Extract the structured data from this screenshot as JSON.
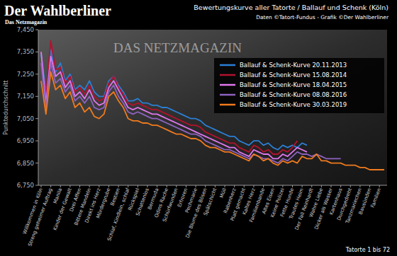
{
  "chart_data": {
    "type": "line",
    "title": "Der Wahlberliner",
    "subtitle": "Das Netzmagazin",
    "annotations": [
      "Bewertungskurve aller Tatorte / Ballauf und Schenk (Köln)",
      "Daten ©Tatort-Fundus - Grafik ©Der Wahlberliner",
      "DAS NETZMAGAZIN"
    ],
    "x_label": "Tatorte 1 bis 72",
    "y_label": "Punktedurchschnitt",
    "categories": [
      "Willkommen in Köln",
      null,
      "Streng geheimer Auftrag",
      null,
      "Manila",
      null,
      "Kinder der Gewalt",
      null,
      "Drei Affen",
      null,
      "Bittere Mandeln",
      null,
      "Direkt ins Herz",
      null,
      "Mördergrube",
      null,
      "Bestien",
      null,
      "Schlaf, Kindlein, schlaf",
      null,
      "Rückspiel",
      null,
      "Schattenlos",
      null,
      "Bermuda",
      null,
      "Odins Rache",
      null,
      "Schürfwunden",
      null,
      "Erfroren",
      null,
      "Pechmarie",
      null,
      "Die Blume des Bösen",
      null,
      "Spätschicht",
      null,
      "Müll",
      null,
      "Rabenherz",
      null,
      "Platt gemacht",
      null,
      "Kaltes Herz",
      null,
      "Familienbande",
      null,
      "Altes Eisen",
      null,
      "Keine Polizei",
      null,
      "Fette Hunde",
      null,
      "Trautes Heim",
      null,
      "Der Fall Reinhardt",
      null,
      "Wahre Liebe",
      null,
      "Dicker als Wasser",
      null,
      "Kartenhaus",
      null,
      "Durchgedreht",
      null,
      "Tanzmariechen",
      null,
      "Bausünden",
      null,
      "Familien",
      null
    ],
    "series": [
      {
        "name": "Ballauf & Schenk-Kurve 20.11.2013",
        "color": "#2b7fd4",
        "values": [
          7.34,
          7.17,
          7.36,
          7.26,
          7.3,
          7.22,
          7.25,
          7.18,
          7.2,
          7.18,
          7.22,
          7.17,
          7.15,
          7.15,
          7.22,
          7.24,
          7.2,
          7.17,
          7.13,
          7.13,
          7.14,
          7.12,
          7.12,
          7.11,
          7.11,
          7.1,
          7.1,
          7.09,
          7.08,
          7.07,
          7.06,
          7.05,
          7.05,
          7.04,
          7.02,
          7.01,
          7.0,
          6.99,
          6.98,
          6.97,
          6.97,
          6.95,
          6.94,
          6.93,
          6.95,
          6.95,
          6.93,
          6.94,
          6.92,
          6.91,
          6.93,
          6.92,
          6.93,
          6.92,
          6.94,
          6.93,
          null,
          null,
          null,
          null,
          null,
          null,
          null,
          null,
          null,
          null,
          null,
          null,
          null,
          null,
          null,
          null
        ]
      },
      {
        "name": "Ballauf & Schenk-Kurve 15.08.2014",
        "color": "#b3122e",
        "values": [
          7.3,
          7.16,
          7.4,
          7.27,
          7.28,
          7.21,
          7.24,
          7.17,
          7.19,
          7.16,
          7.2,
          7.15,
          7.13,
          7.14,
          7.21,
          7.24,
          7.19,
          7.16,
          7.12,
          7.11,
          7.12,
          7.11,
          7.1,
          7.09,
          7.09,
          7.08,
          7.07,
          7.06,
          7.05,
          7.04,
          7.03,
          7.02,
          7.02,
          7.01,
          6.99,
          6.98,
          6.97,
          6.96,
          6.95,
          6.94,
          6.94,
          6.92,
          6.91,
          6.9,
          6.93,
          6.92,
          6.9,
          6.91,
          6.89,
          6.89,
          6.91,
          6.9,
          6.92,
          6.95,
          null,
          null,
          null,
          null,
          null,
          null,
          null,
          null,
          null,
          null,
          null,
          null,
          null,
          null,
          null,
          null,
          null,
          null
        ]
      },
      {
        "name": "Ballauf & Schenk-Kurve 18.04.2015",
        "color": "#e277ee",
        "values": [
          7.35,
          7.12,
          7.33,
          7.24,
          7.26,
          7.19,
          7.22,
          7.15,
          7.17,
          7.14,
          7.18,
          7.13,
          7.11,
          7.12,
          7.19,
          7.22,
          7.18,
          7.14,
          7.1,
          7.09,
          7.1,
          7.09,
          7.08,
          7.07,
          7.07,
          7.06,
          7.05,
          7.04,
          7.03,
          7.02,
          7.01,
          7.0,
          6.99,
          6.98,
          6.97,
          6.96,
          6.95,
          6.94,
          6.93,
          6.92,
          6.92,
          6.9,
          6.89,
          6.88,
          6.91,
          6.9,
          6.89,
          6.89,
          6.87,
          6.87,
          6.89,
          6.88,
          6.9,
          6.92,
          6.91,
          6.9,
          null,
          null,
          null,
          null,
          null,
          null,
          null,
          null,
          null,
          null,
          null,
          null,
          null,
          null,
          null,
          null
        ]
      },
      {
        "name": "Ballauf & Schenk-Kurve 08.08.2016",
        "color": "#8e62bf",
        "values": [
          7.3,
          7.1,
          7.3,
          7.21,
          7.23,
          7.17,
          7.2,
          7.13,
          7.15,
          7.12,
          7.15,
          7.1,
          7.09,
          7.1,
          7.17,
          7.2,
          7.15,
          7.12,
          7.08,
          7.07,
          7.08,
          7.07,
          7.06,
          7.05,
          7.05,
          7.04,
          7.03,
          7.02,
          7.01,
          7.0,
          6.99,
          6.98,
          6.98,
          6.97,
          6.95,
          6.94,
          6.93,
          6.92,
          6.91,
          6.91,
          6.9,
          6.89,
          6.88,
          6.87,
          6.89,
          6.88,
          6.87,
          6.87,
          6.86,
          6.85,
          6.87,
          6.86,
          6.88,
          6.9,
          6.89,
          6.89,
          6.88,
          6.89,
          6.88,
          6.87,
          6.87,
          6.87,
          6.87,
          null,
          null,
          null,
          null,
          null,
          null,
          null,
          null,
          null
        ]
      },
      {
        "name": "Ballauf & Schenk-Kurve 30.03.2019",
        "color": "#f07a1e",
        "values": [
          7.22,
          7.07,
          7.26,
          7.18,
          7.2,
          7.14,
          7.17,
          7.1,
          7.12,
          7.08,
          7.1,
          7.06,
          7.05,
          7.07,
          7.15,
          7.17,
          7.13,
          7.1,
          7.05,
          7.04,
          7.04,
          7.03,
          7.03,
          7.02,
          7.02,
          7.01,
          7.0,
          6.99,
          6.98,
          6.98,
          6.97,
          6.96,
          6.96,
          6.95,
          6.93,
          6.92,
          6.92,
          6.91,
          6.9,
          6.9,
          6.89,
          6.88,
          6.87,
          6.86,
          6.89,
          6.88,
          6.86,
          6.87,
          6.85,
          6.84,
          6.86,
          6.85,
          6.86,
          6.85,
          6.88,
          6.87,
          6.87,
          6.89,
          6.86,
          6.86,
          6.85,
          6.85,
          6.85,
          6.84,
          6.84,
          6.84,
          6.83,
          6.83,
          6.82,
          6.82,
          6.82,
          6.82
        ]
      }
    ],
    "ylim": [
      6.75,
      7.45
    ],
    "yticks": [
      {
        "value": 6.75,
        "label": "6,750"
      },
      {
        "value": 6.85,
        "label": "6,850"
      },
      {
        "value": 6.95,
        "label": "6,950"
      },
      {
        "value": 7.05,
        "label": "7,050"
      },
      {
        "value": 7.15,
        "label": "7,150"
      },
      {
        "value": 7.25,
        "label": "7,250"
      },
      {
        "value": 7.35,
        "label": "7,350"
      },
      {
        "value": 7.45,
        "label": "7,450"
      }
    ],
    "grid": false,
    "legend": "top-right"
  }
}
